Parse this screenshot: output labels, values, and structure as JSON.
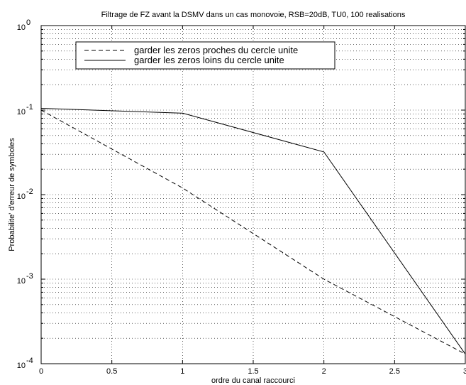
{
  "chart_data": {
    "type": "line",
    "title": "Filtrage de FZ avant la DSMV dans un cas monovoie, RSB=20dB, TU0, 100 realisations",
    "xlabel": "ordre du canal raccourci",
    "ylabel": "Probabilite' d'erreur de symboles",
    "xlim": [
      0,
      3
    ],
    "ylim": [
      0.0001,
      1
    ],
    "yscale": "log",
    "grid": true,
    "legend_position": "top-left",
    "x_ticks": [
      0,
      0.5,
      1,
      1.5,
      2,
      2.5,
      3
    ],
    "x_tick_labels": [
      "0",
      "0.5",
      "1",
      "1.5",
      "2",
      "2.5",
      "3"
    ],
    "y_tick_labels": [
      {
        "base": "10",
        "exp": "-4",
        "value": 0.0001
      },
      {
        "base": "10",
        "exp": "-3",
        "value": 0.001
      },
      {
        "base": "10",
        "exp": "-2",
        "value": 0.01
      },
      {
        "base": "10",
        "exp": "-1",
        "value": 0.1
      },
      {
        "base": "10",
        "exp": "0",
        "value": 1
      }
    ],
    "x": [
      0,
      1,
      2,
      3
    ],
    "series": [
      {
        "name": "garder les zeros proches du cercle unite",
        "style": "dashed",
        "color": "#000000",
        "values": [
          0.1,
          0.012,
          0.001,
          0.00013
        ]
      },
      {
        "name": "garder les zeros loins du cercle unite",
        "style": "solid",
        "color": "#000000",
        "values": [
          0.105,
          0.092,
          0.032,
          0.00013
        ]
      }
    ]
  }
}
